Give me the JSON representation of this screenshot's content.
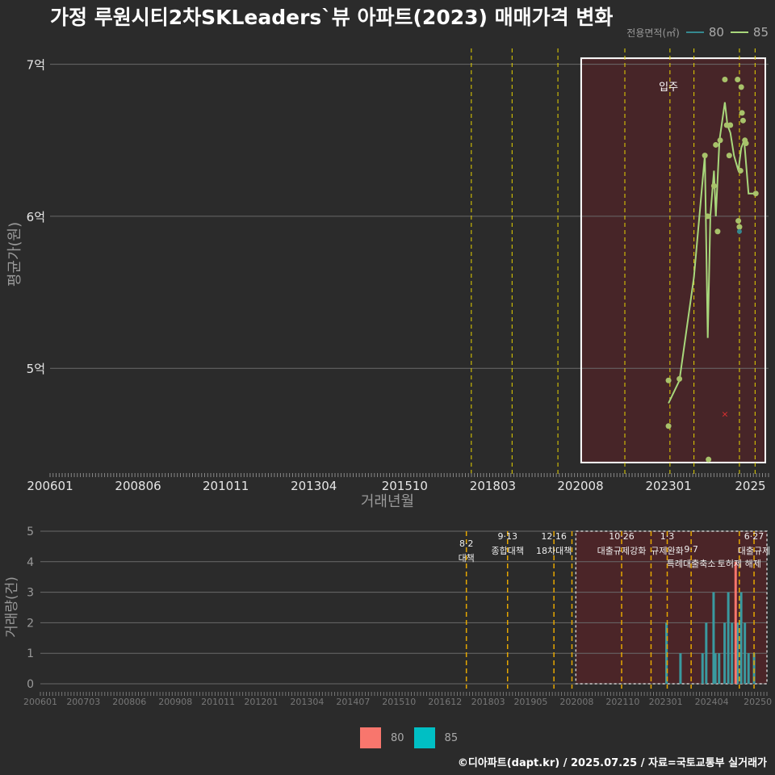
{
  "chart_data": [
    {
      "type": "line",
      "title": "가정 루원시티2차SKLeaders`뷰 아파트(2023) 매매가격 변화",
      "xlabel": "거래년월",
      "ylabel": "평균가(원)",
      "xlim": [
        2006.0,
        2025.75
      ],
      "ylim": [
        4.3,
        7.2
      ],
      "y_ticks": [
        {
          "v": 5,
          "label": "5억"
        },
        {
          "v": 6,
          "label": "6억"
        },
        {
          "v": 7,
          "label": "7억"
        }
      ],
      "x_ticks": [
        {
          "v": 2006.0,
          "label": "200601"
        },
        {
          "v": 2008.42,
          "label": "200806"
        },
        {
          "v": 2010.83,
          "label": "201011"
        },
        {
          "v": 2013.25,
          "label": "201304"
        },
        {
          "v": 2015.75,
          "label": "201510"
        },
        {
          "v": 2018.17,
          "label": "201803"
        },
        {
          "v": 2020.58,
          "label": "202008"
        },
        {
          "v": 2023.0,
          "label": "202301"
        },
        {
          "v": 2025.25,
          "label": "2025"
        }
      ],
      "legend_title": "전용면적(㎡)",
      "legend": [
        {
          "name": "80",
          "color": "#35888f"
        },
        {
          "name": "85",
          "color": "#a8d77b"
        }
      ],
      "annotation": "입주",
      "policy_lines": [
        2017.58,
        2018.7,
        2019.96,
        2021.8,
        2023.04,
        2023.7,
        2024.95,
        2025.38
      ],
      "highlight_range": [
        2020.6,
        2025.75
      ],
      "series": [
        {
          "name": "85",
          "x": [
            2023.0,
            2023.3,
            2023.7,
            2024.0,
            2024.08,
            2024.15,
            2024.25,
            2024.3,
            2024.4,
            2024.55,
            2024.62,
            2024.7,
            2024.8,
            2024.92,
            2025.0,
            2025.08,
            2025.2,
            2025.35
          ],
          "y": [
            4.77,
            4.92,
            5.6,
            6.4,
            5.2,
            6.0,
            6.3,
            6.0,
            6.5,
            6.75,
            6.6,
            6.55,
            6.4,
            6.3,
            6.45,
            6.5,
            6.15,
            6.15
          ]
        }
      ],
      "points_85": [
        {
          "x": 2023.0,
          "y": 4.92
        },
        {
          "x": 2023.0,
          "y": 4.62
        },
        {
          "x": 2023.3,
          "y": 4.93
        },
        {
          "x": 2024.0,
          "y": 6.4
        },
        {
          "x": 2024.08,
          "y": 6.0
        },
        {
          "x": 2024.1,
          "y": 4.4
        },
        {
          "x": 2024.25,
          "y": 6.2
        },
        {
          "x": 2024.3,
          "y": 6.47
        },
        {
          "x": 2024.35,
          "y": 5.9
        },
        {
          "x": 2024.42,
          "y": 6.5
        },
        {
          "x": 2024.55,
          "y": 6.9
        },
        {
          "x": 2024.6,
          "y": 6.6
        },
        {
          "x": 2024.67,
          "y": 6.4
        },
        {
          "x": 2024.7,
          "y": 6.6
        },
        {
          "x": 2024.9,
          "y": 6.9
        },
        {
          "x": 2024.92,
          "y": 5.97
        },
        {
          "x": 2024.95,
          "y": 5.93
        },
        {
          "x": 2024.98,
          "y": 6.3
        },
        {
          "x": 2025.0,
          "y": 6.85
        },
        {
          "x": 2025.02,
          "y": 6.68
        },
        {
          "x": 2025.05,
          "y": 6.63
        },
        {
          "x": 2025.1,
          "y": 6.5
        },
        {
          "x": 2025.13,
          "y": 6.48
        },
        {
          "x": 2025.4,
          "y": 6.15
        }
      ],
      "points_80": [
        {
          "x": 2024.95,
          "y": 5.9
        }
      ],
      "cancelled": [
        {
          "x": 2024.55,
          "y": 4.7
        }
      ]
    },
    {
      "type": "bar",
      "ylabel": "거래량(건)",
      "xlim": [
        2006.0,
        2025.75
      ],
      "ylim": [
        0,
        5
      ],
      "y_ticks": [
        0,
        1,
        2,
        3,
        4,
        5
      ],
      "x_ticks": [
        {
          "v": 2006.0,
          "label": "200601"
        },
        {
          "v": 2007.17,
          "label": "200703"
        },
        {
          "v": 2008.42,
          "label": "200806"
        },
        {
          "v": 2009.67,
          "label": "200908"
        },
        {
          "v": 2010.83,
          "label": "201011"
        },
        {
          "v": 2012.0,
          "label": "201201"
        },
        {
          "v": 2013.25,
          "label": "201304"
        },
        {
          "v": 2014.5,
          "label": "201407"
        },
        {
          "v": 2015.75,
          "label": "201510"
        },
        {
          "v": 2017.0,
          "label": "201612"
        },
        {
          "v": 2018.17,
          "label": "201803"
        },
        {
          "v": 2019.33,
          "label": "201905"
        },
        {
          "v": 2020.58,
          "label": "202008"
        },
        {
          "v": 2021.83,
          "label": "202110"
        },
        {
          "v": 2023.0,
          "label": "202301"
        },
        {
          "v": 2024.25,
          "label": "202404"
        },
        {
          "v": 2025.5,
          "label": "20250"
        }
      ],
      "legend": [
        {
          "name": "80",
          "color": "#f8766d"
        },
        {
          "name": "85",
          "color": "#00bfc4"
        }
      ],
      "policy_lines": [
        {
          "x": 2017.58,
          "label": "8·2 대책"
        },
        {
          "x": 2018.7,
          "label": "9·13 종합대책"
        },
        {
          "x": 2019.96,
          "label": "12·16 18차대책"
        },
        {
          "x": 2020.45,
          "label": ""
        },
        {
          "x": 2021.8,
          "label": "10·26 대출규제강화"
        },
        {
          "x": 2022.6,
          "label": ""
        },
        {
          "x": 2023.04,
          "label": "1·3 규제완화"
        },
        {
          "x": 2023.69,
          "label": "9·7 특례대출축소"
        },
        {
          "x": 2025.0,
          "label": "토허제 해제"
        },
        {
          "x": 2025.4,
          "label": "6·27 대출규제"
        }
      ],
      "highlight_range": [
        2020.6,
        2025.75
      ],
      "series_85": [
        {
          "x": 2023.02,
          "v": 2
        },
        {
          "x": 2023.4,
          "v": 1
        },
        {
          "x": 2024.0,
          "v": 1
        },
        {
          "x": 2024.1,
          "v": 2
        },
        {
          "x": 2024.3,
          "v": 3
        },
        {
          "x": 2024.35,
          "v": 1
        },
        {
          "x": 2024.45,
          "v": 1
        },
        {
          "x": 2024.6,
          "v": 2
        },
        {
          "x": 2024.7,
          "v": 3
        },
        {
          "x": 2024.8,
          "v": 2
        },
        {
          "x": 2024.95,
          "v": 2
        },
        {
          "x": 2025.05,
          "v": 3
        },
        {
          "x": 2025.15,
          "v": 2
        },
        {
          "x": 2025.25,
          "v": 1
        },
        {
          "x": 2025.4,
          "v": 1
        }
      ],
      "series_80": [
        {
          "x": 2024.9,
          "v": 4
        }
      ]
    }
  ],
  "footer": "©디아파트(dapt.kr) / 2025.07.25 / 자료=국토교통부 실거래가"
}
